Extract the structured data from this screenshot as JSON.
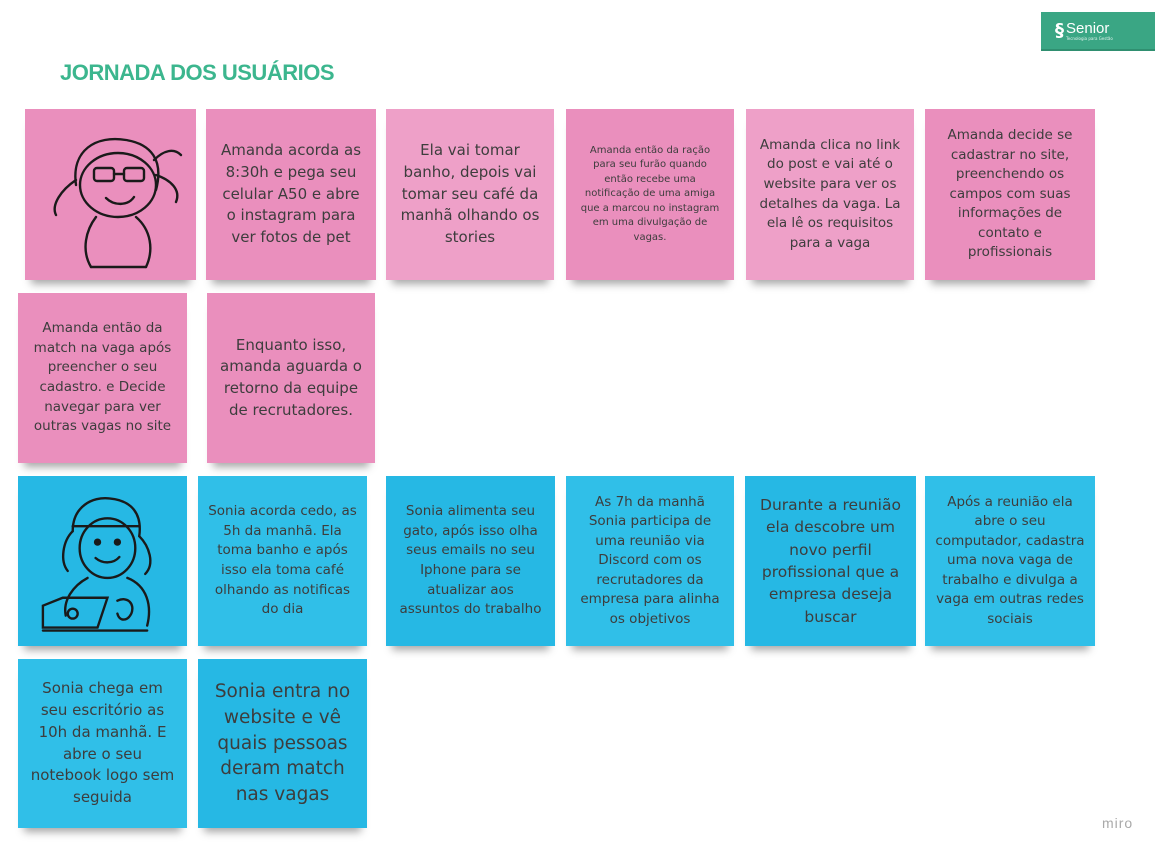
{
  "board": {
    "title": "JORNADA DOS USUÁRIOS",
    "watermark": "miro"
  },
  "logo": {
    "name": "Senior",
    "tagline": "Tecnologia para Gestão",
    "color": "#3aa684"
  },
  "notes": {
    "amanda": [
      "Amanda acorda as 8:30h e pega seu celular A50 e abre o instagram para ver fotos de pet",
      "Ela vai tomar banho, depois vai tomar seu café da manhã olhando os stories",
      "Amanda então da ração para seu furão quando então recebe uma notificação de uma amiga que a marcou no instagram em uma divulgação de vagas.",
      "Amanda clica no link do post e vai até o website para ver os detalhes da vaga. La ela lê os requisitos para a vaga",
      "Amanda decide se cadastrar no site, preenchendo os campos com suas informações de contato e profissionais",
      "Amanda então da match na vaga após preencher o seu cadastro. e Decide navegar para ver outras vagas no site",
      "Enquanto isso, amanda aguarda o retorno da equipe de recrutadores."
    ],
    "sonia": [
      "Sonia acorda cedo, as 5h da manhã. Ela toma banho e após isso ela toma café olhando as notificas do dia",
      "Sonia alimenta seu gato, após isso olha seus emails no seu Iphone para se atualizar aos assuntos do trabalho",
      "As 7h da manhã Sonia participa de uma reunião via Discord com os recrutadores da empresa para alinha os objetivos",
      "Durante a reunião ela descobre um novo perfil profissional que a empresa deseja buscar",
      "Após a reunião ela abre o seu computador, cadastra uma nova vaga de trabalho e divulga a vaga em outras redes sociais",
      "Sonia chega em seu escritório as 10h da manhã. E abre o seu notebook logo sem seguida",
      "Sonia entra no website e vê quais pessoas deram match nas vagas"
    ]
  },
  "colors": {
    "pink": "#ea8fbd",
    "blue": "#26b8e4",
    "title": "#3cb68e"
  }
}
